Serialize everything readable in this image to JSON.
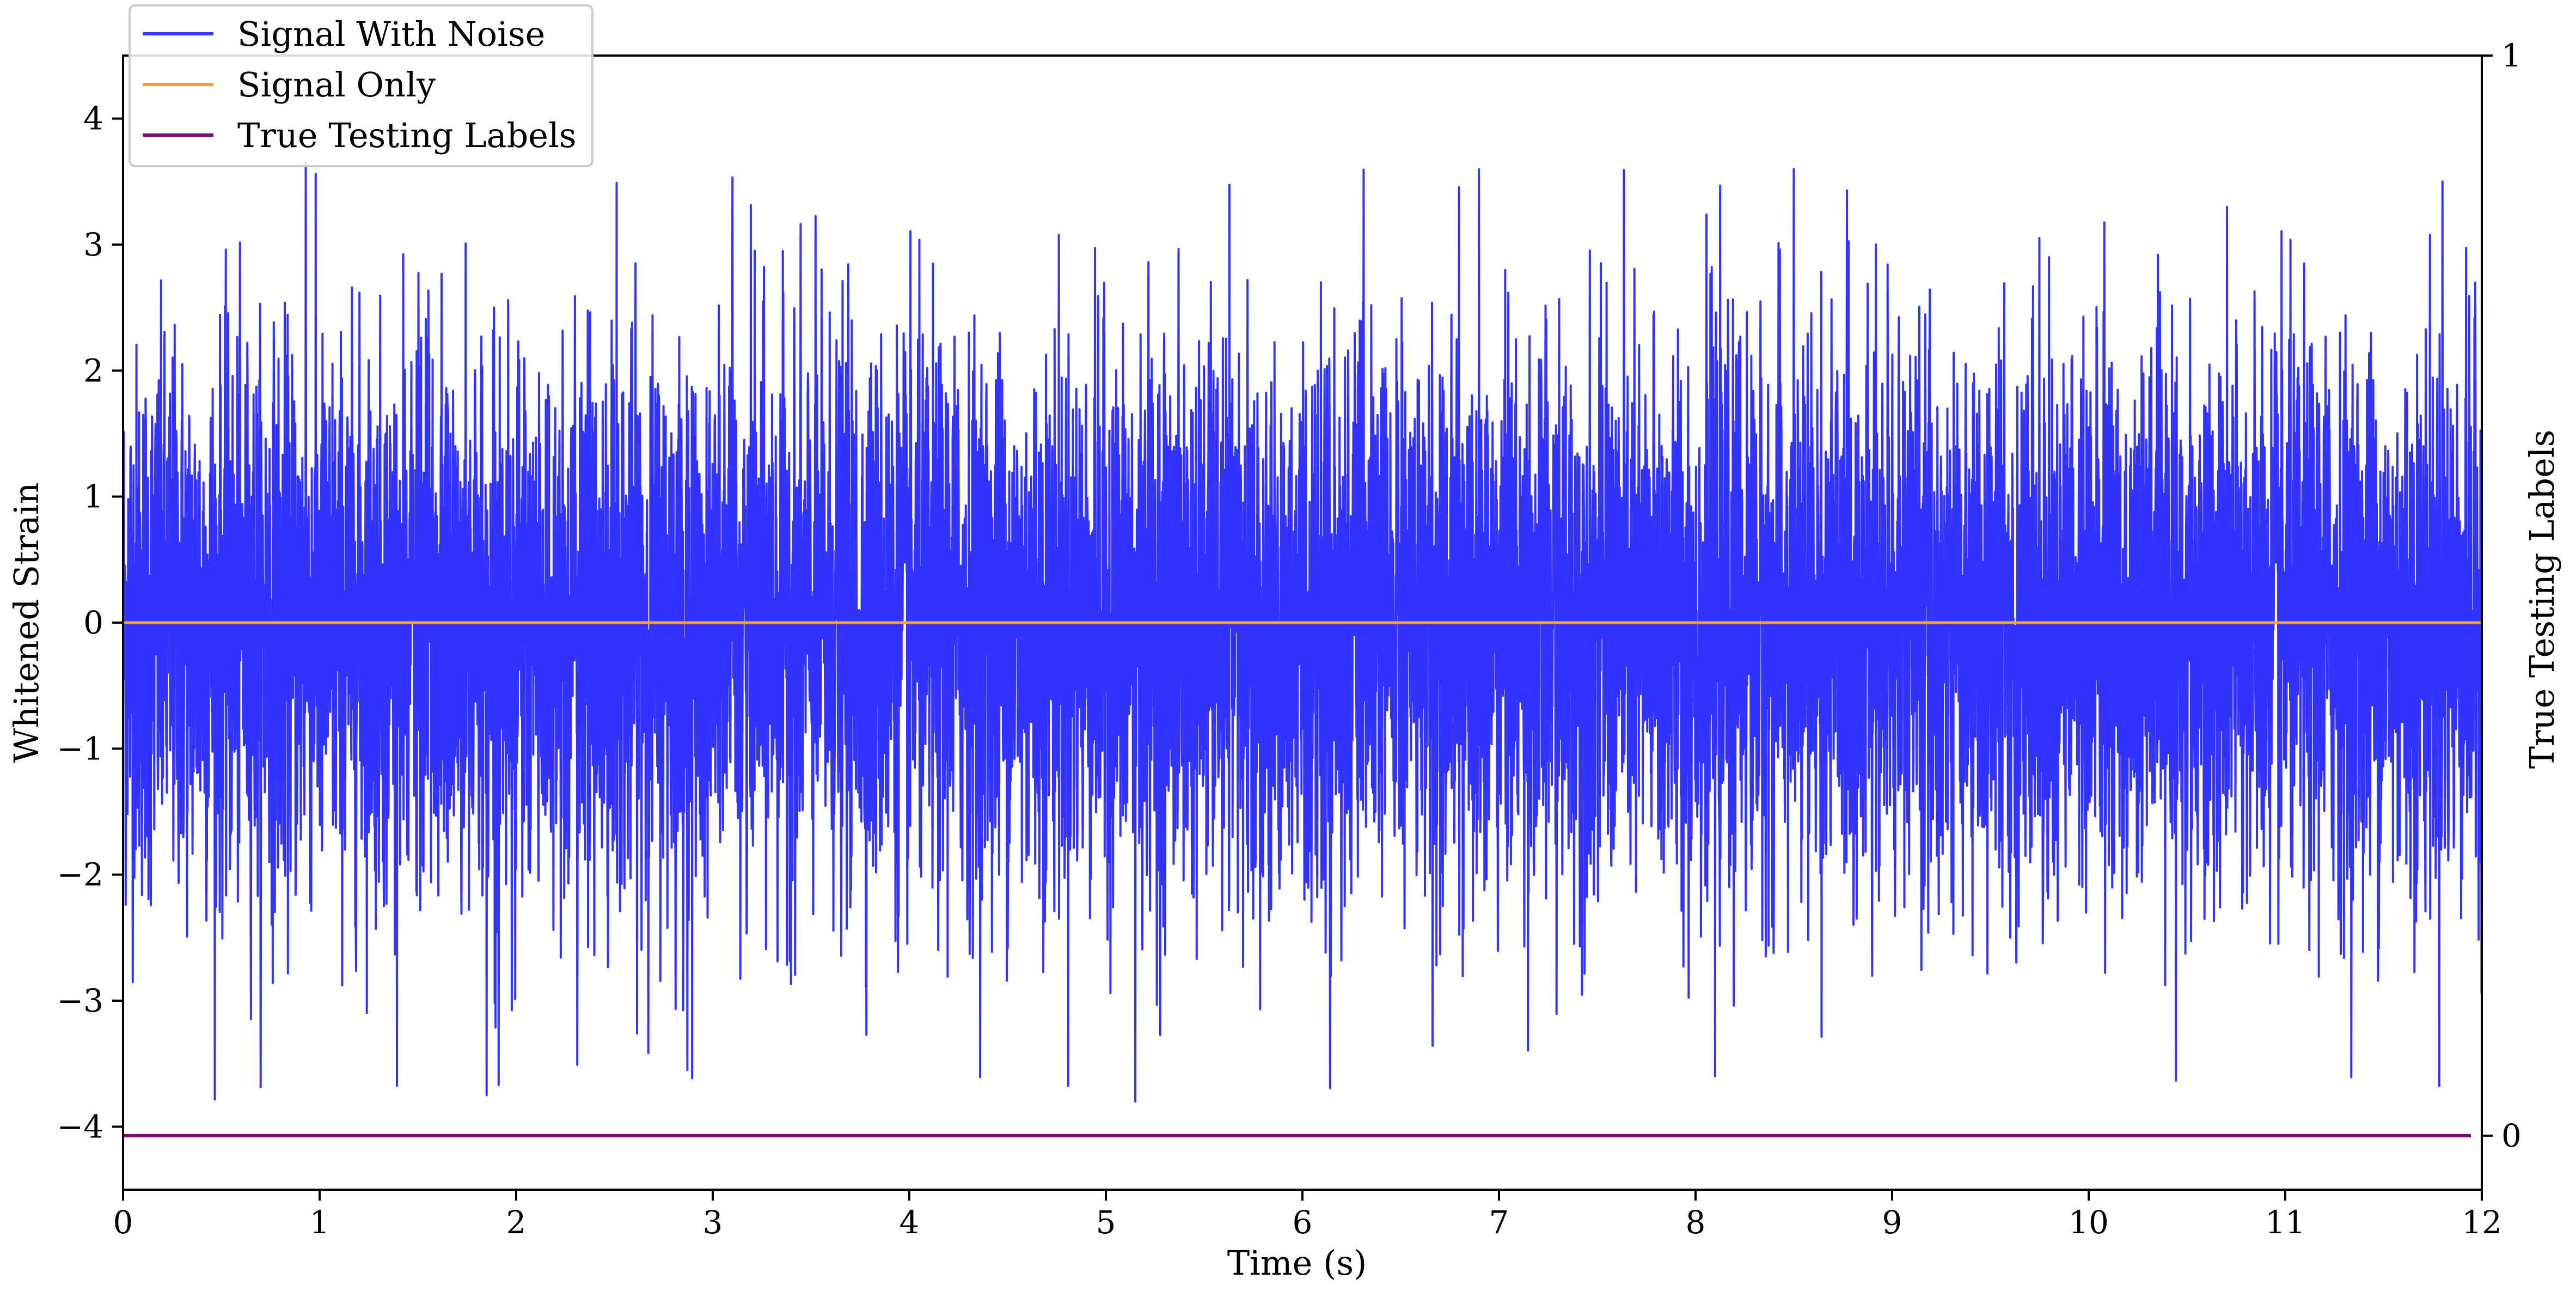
{
  "chart_data": {
    "type": "line",
    "xlabel": "Time (s)",
    "ylabel": "Whitened Strain",
    "y2label": "True Testing Labels",
    "xlim": [
      0,
      12
    ],
    "ylim": [
      -4.5,
      4.5
    ],
    "y2lim": [
      -0.05,
      1.0
    ],
    "x_ticks": [
      "0",
      "1",
      "2",
      "3",
      "4",
      "5",
      "6",
      "7",
      "8",
      "9",
      "10",
      "11",
      "12"
    ],
    "y_ticks": [
      {
        "value": 4,
        "label": "4"
      },
      {
        "value": 3,
        "label": "3"
      },
      {
        "value": 2,
        "label": "2"
      },
      {
        "value": 1,
        "label": "1"
      },
      {
        "value": 0,
        "label": "0"
      },
      {
        "value": -1,
        "label": "−1"
      },
      {
        "value": -2,
        "label": "−2"
      },
      {
        "value": -3,
        "label": "−3"
      },
      {
        "value": -4,
        "label": "−4"
      }
    ],
    "y2_ticks": [
      {
        "value": 1,
        "label": "1"
      },
      {
        "value": 0,
        "label": "0"
      }
    ],
    "grid": false,
    "legend_position": "top-left",
    "series": [
      {
        "name": "Signal With Noise",
        "color": "#3333ff",
        "axis": "left",
        "description_stats": {
          "mean": 0,
          "typical_min": -2.5,
          "typical_max": 2.5,
          "max": 3.6,
          "min": -3.8
        },
        "peaks": [
          {
            "x": 0.93,
            "y": 3.65
          },
          {
            "x": 8.5,
            "y": 3.6
          },
          {
            "x": 11.8,
            "y": 3.5
          },
          {
            "x": 1.85,
            "y": -3.75
          },
          {
            "x": 5.15,
            "y": -3.8
          },
          {
            "x": 8.1,
            "y": -3.6
          }
        ]
      },
      {
        "name": "Signal Only",
        "color": "#ffa500",
        "axis": "left",
        "x": [
          0,
          12
        ],
        "y": [
          0,
          0
        ]
      },
      {
        "name": "True Testing Labels",
        "color": "#800080",
        "axis": "right",
        "x": [
          0,
          12
        ],
        "y": [
          0,
          0
        ]
      }
    ]
  }
}
